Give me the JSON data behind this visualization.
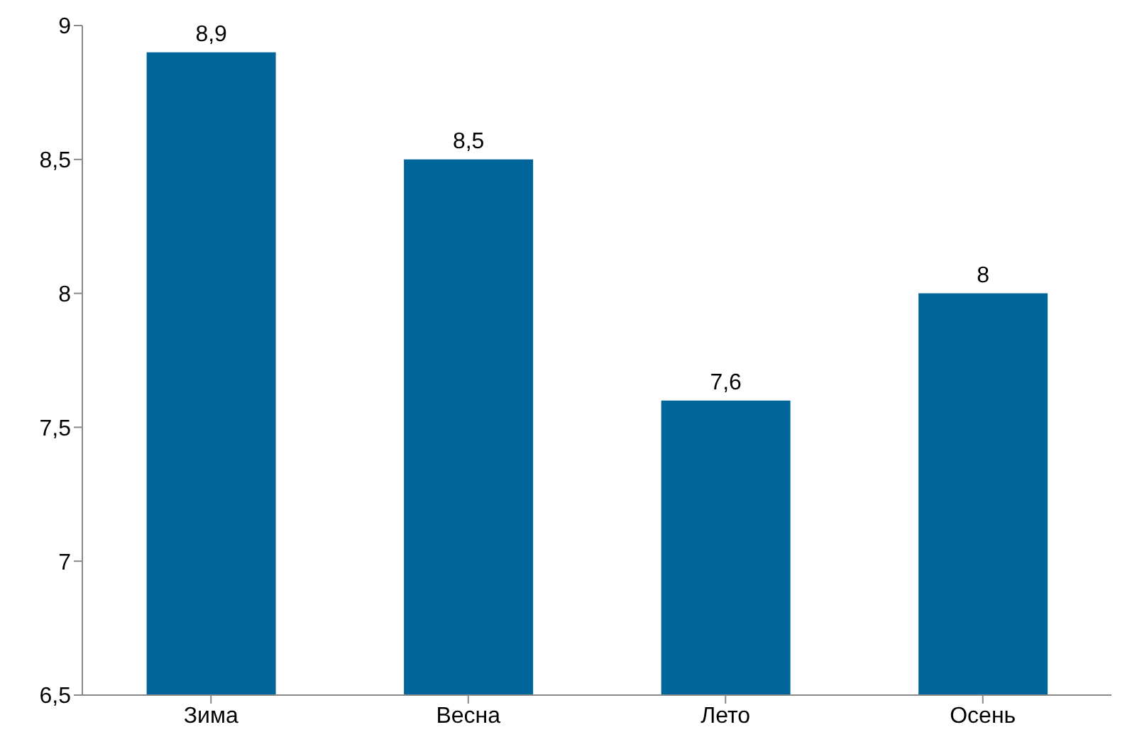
{
  "chart_data": {
    "type": "bar",
    "categories": [
      "Зима",
      "Весна",
      "Лето",
      "Осень"
    ],
    "values": [
      8.9,
      8.5,
      7.6,
      8
    ],
    "value_labels": [
      "8,9",
      "8,5",
      "7,6",
      "8"
    ],
    "color": "#006699",
    "ylim": [
      6.5,
      9
    ],
    "yticks": [
      {
        "value": 6.5,
        "label": "6,5"
      },
      7,
      {
        "value": 7.5,
        "label": "7,5"
      },
      8,
      {
        "value": 8.5,
        "label": "8,5"
      },
      9
    ],
    "grid": false,
    "legend": false
  }
}
